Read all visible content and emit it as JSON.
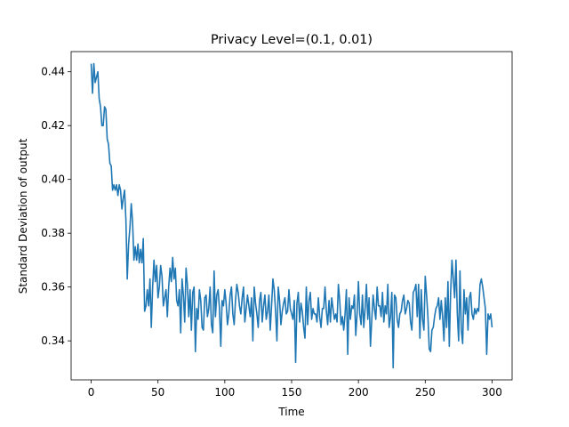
{
  "chart_data": {
    "type": "line",
    "title": "Privacy Level=(0.1, 0.01)",
    "xlabel": "Time",
    "ylabel": "Standard Deviation of output",
    "xlim": [
      -15,
      315
    ],
    "ylim": [
      0.3255,
      0.4475
    ],
    "xticks": [
      0,
      50,
      100,
      150,
      200,
      250,
      300
    ],
    "yticks": [
      0.34,
      0.36,
      0.38,
      0.4,
      0.42,
      0.44
    ],
    "xtick_labels": [
      "0",
      "50",
      "100",
      "150",
      "200",
      "250",
      "300"
    ],
    "ytick_labels": [
      "0.34",
      "0.36",
      "0.38",
      "0.40",
      "0.42",
      "0.44"
    ],
    "grid": false,
    "legend": "none",
    "series": [
      {
        "color": "#1f77b4",
        "x": [
          0,
          1,
          2,
          3,
          4,
          5,
          6,
          7,
          8,
          9,
          10,
          11,
          12,
          13,
          14,
          15,
          16,
          17,
          18,
          19,
          20,
          21,
          22,
          23,
          24,
          25,
          26,
          27,
          28,
          29,
          30,
          31,
          32,
          33,
          34,
          35,
          36,
          37,
          38,
          39,
          40,
          41,
          42,
          43,
          44,
          45,
          46,
          47,
          48,
          49,
          50,
          51,
          52,
          53,
          54,
          55,
          56,
          57,
          58,
          59,
          60,
          61,
          62,
          63,
          64,
          65,
          66,
          67,
          68,
          69,
          70,
          71,
          72,
          73,
          74,
          75,
          76,
          77,
          78,
          79,
          80,
          81,
          82,
          83,
          84,
          85,
          86,
          87,
          88,
          89,
          90,
          91,
          92,
          93,
          94,
          95,
          96,
          97,
          98,
          99,
          100,
          101,
          102,
          103,
          104,
          105,
          106,
          107,
          108,
          109,
          110,
          111,
          112,
          113,
          114,
          115,
          116,
          117,
          118,
          119,
          120,
          121,
          122,
          123,
          124,
          125,
          126,
          127,
          128,
          129,
          130,
          131,
          132,
          133,
          134,
          135,
          136,
          137,
          138,
          139,
          140,
          141,
          142,
          143,
          144,
          145,
          146,
          147,
          148,
          149,
          150,
          151,
          152,
          153,
          154,
          155,
          156,
          157,
          158,
          159,
          160,
          161,
          162,
          163,
          164,
          165,
          166,
          167,
          168,
          169,
          170,
          171,
          172,
          173,
          174,
          175,
          176,
          177,
          178,
          179,
          180,
          181,
          182,
          183,
          184,
          185,
          186,
          187,
          188,
          189,
          190,
          191,
          192,
          193,
          194,
          195,
          196,
          197,
          198,
          199,
          200,
          201,
          202,
          203,
          204,
          205,
          206,
          207,
          208,
          209,
          210,
          211,
          212,
          213,
          214,
          215,
          216,
          217,
          218,
          219,
          220,
          221,
          222,
          223,
          224,
          225,
          226,
          227,
          228,
          229,
          230,
          231,
          232,
          233,
          234,
          235,
          236,
          237,
          238,
          239,
          240,
          241,
          242,
          243,
          244,
          245,
          246,
          247,
          248,
          249,
          250,
          251,
          252,
          253,
          254,
          255,
          256,
          257,
          258,
          259,
          260,
          261,
          262,
          263,
          264,
          265,
          266,
          267,
          268,
          269,
          270,
          271,
          272,
          273,
          274,
          275,
          276,
          277,
          278,
          279,
          280,
          281,
          282,
          283,
          284,
          285,
          286,
          287,
          288,
          289,
          290,
          291,
          292,
          293,
          294,
          295,
          296,
          297,
          298,
          299,
          300
        ],
        "y": [
          0.443,
          0.432,
          0.443,
          0.436,
          0.438,
          0.44,
          0.43,
          0.427,
          0.42,
          0.42,
          0.427,
          0.426,
          0.415,
          0.413,
          0.406,
          0.405,
          0.396,
          0.398,
          0.396,
          0.398,
          0.394,
          0.398,
          0.396,
          0.389,
          0.393,
          0.396,
          0.385,
          0.363,
          0.376,
          0.382,
          0.391,
          0.384,
          0.37,
          0.375,
          0.37,
          0.376,
          0.369,
          0.374,
          0.369,
          0.378,
          0.351,
          0.353,
          0.359,
          0.353,
          0.363,
          0.345,
          0.36,
          0.37,
          0.362,
          0.368,
          0.356,
          0.36,
          0.368,
          0.364,
          0.353,
          0.356,
          0.359,
          0.349,
          0.36,
          0.367,
          0.362,
          0.371,
          0.363,
          0.367,
          0.355,
          0.353,
          0.359,
          0.343,
          0.363,
          0.357,
          0.347,
          0.367,
          0.361,
          0.349,
          0.359,
          0.344,
          0.358,
          0.36,
          0.336,
          0.352,
          0.348,
          0.359,
          0.355,
          0.345,
          0.344,
          0.356,
          0.357,
          0.349,
          0.352,
          0.36,
          0.346,
          0.343,
          0.366,
          0.349,
          0.357,
          0.359,
          0.352,
          0.338,
          0.355,
          0.353,
          0.359,
          0.354,
          0.346,
          0.35,
          0.357,
          0.36,
          0.35,
          0.346,
          0.355,
          0.361,
          0.358,
          0.353,
          0.35,
          0.356,
          0.36,
          0.347,
          0.352,
          0.357,
          0.353,
          0.349,
          0.356,
          0.34,
          0.36,
          0.354,
          0.35,
          0.345,
          0.355,
          0.358,
          0.347,
          0.353,
          0.357,
          0.348,
          0.351,
          0.357,
          0.344,
          0.353,
          0.363,
          0.359,
          0.351,
          0.34,
          0.36,
          0.355,
          0.346,
          0.351,
          0.354,
          0.356,
          0.35,
          0.351,
          0.359,
          0.352,
          0.35,
          0.348,
          0.355,
          0.332,
          0.354,
          0.358,
          0.347,
          0.354,
          0.351,
          0.345,
          0.341,
          0.36,
          0.346,
          0.355,
          0.358,
          0.348,
          0.352,
          0.35,
          0.35,
          0.347,
          0.356,
          0.349,
          0.345,
          0.352,
          0.352,
          0.36,
          0.351,
          0.346,
          0.355,
          0.347,
          0.356,
          0.352,
          0.348,
          0.35,
          0.347,
          0.361,
          0.355,
          0.346,
          0.349,
          0.344,
          0.35,
          0.359,
          0.335,
          0.356,
          0.348,
          0.353,
          0.352,
          0.357,
          0.342,
          0.35,
          0.362,
          0.35,
          0.346,
          0.357,
          0.345,
          0.352,
          0.361,
          0.348,
          0.356,
          0.338,
          0.348,
          0.357,
          0.352,
          0.348,
          0.36,
          0.353,
          0.353,
          0.349,
          0.358,
          0.347,
          0.353,
          0.35,
          0.361,
          0.345,
          0.349,
          0.358,
          0.33,
          0.357,
          0.356,
          0.348,
          0.345,
          0.35,
          0.351,
          0.355,
          0.357,
          0.35,
          0.352,
          0.355,
          0.354,
          0.347,
          0.344,
          0.358,
          0.359,
          0.361,
          0.349,
          0.361,
          0.341,
          0.359,
          0.348,
          0.344,
          0.364,
          0.357,
          0.349,
          0.337,
          0.336,
          0.344,
          0.345,
          0.349,
          0.352,
          0.353,
          0.356,
          0.348,
          0.355,
          0.349,
          0.34,
          0.356,
          0.345,
          0.362,
          0.338,
          0.358,
          0.37,
          0.363,
          0.356,
          0.37,
          0.35,
          0.34,
          0.366,
          0.344,
          0.339,
          0.359,
          0.35,
          0.356,
          0.344,
          0.356,
          0.358,
          0.35,
          0.348,
          0.352,
          0.35,
          0.352,
          0.351,
          0.361,
          0.363,
          0.36,
          0.356,
          0.352,
          0.335,
          0.35,
          0.348,
          0.35,
          0.345
        ]
      }
    ]
  }
}
